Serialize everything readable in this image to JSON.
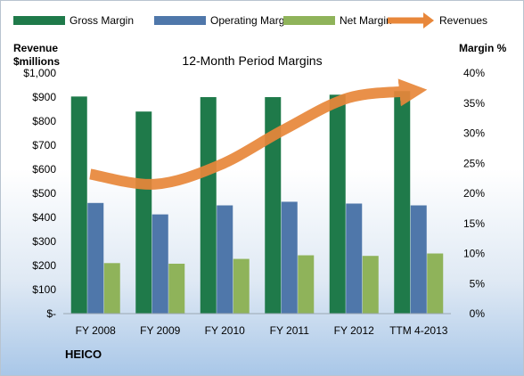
{
  "chart_data": {
    "type": "bar",
    "title": "12-Month Period Margins",
    "company": "HEICO",
    "categories": [
      "FY 2008",
      "FY 2009",
      "FY 2010",
      "FY 2011",
      "FY 2012",
      "TTM 4-2013"
    ],
    "series": [
      {
        "name": "Gross Margin",
        "type": "bar",
        "axis": "right",
        "color": "#1f7a4a",
        "values": [
          36.1,
          33.6,
          36.0,
          36.0,
          36.4,
          37.0
        ]
      },
      {
        "name": "Operating Margin",
        "type": "bar",
        "axis": "right",
        "color": "#4f77aa",
        "values": [
          18.4,
          16.5,
          18.0,
          18.6,
          18.3,
          18.0
        ]
      },
      {
        "name": "Net Margin",
        "type": "bar",
        "axis": "right",
        "color": "#8fb35a",
        "values": [
          8.4,
          8.3,
          9.1,
          9.7,
          9.6,
          10.0
        ]
      },
      {
        "name": "Revenues",
        "type": "line",
        "axis": "left",
        "color": "#e8873a",
        "values": [
          580,
          538,
          617,
          765,
          897,
          925
        ]
      }
    ],
    "left_axis": {
      "title_line1": "Revenue",
      "title_line2": "$millions",
      "min": 0,
      "max": 1000,
      "ticks": [
        "$-",
        "$100",
        "$200",
        "$300",
        "$400",
        "$500",
        "$600",
        "$700",
        "$800",
        "$900",
        "$1,000"
      ]
    },
    "right_axis": {
      "title": "Margin %",
      "min": 0,
      "max": 40,
      "ticks": [
        "0%",
        "5%",
        "10%",
        "15%",
        "20%",
        "25%",
        "30%",
        "35%",
        "40%"
      ]
    },
    "legend_position": "top",
    "grid": false
  }
}
